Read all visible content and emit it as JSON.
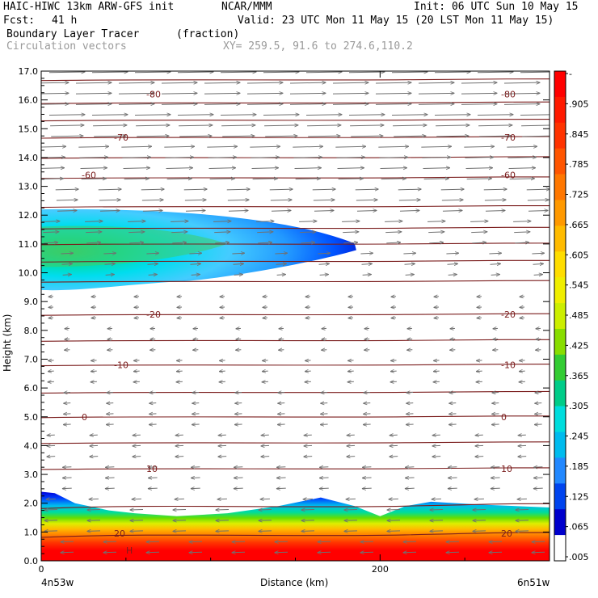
{
  "header": {
    "model_title": "HAIC-HIWC 13km ARW-GFS init",
    "org": "NCAR/MMM",
    "init_time": "Init: 06 UTC Sun 10 May 15",
    "fcst_label": "Fcst:",
    "fcst_value": "41 h",
    "valid_time": "Valid: 23 UTC Mon 11 May 15 (20 LST Mon 11 May 15)",
    "field_name": "Boundary Layer Tracer",
    "field_units": "(fraction)",
    "vector_name": "Circulation vectors",
    "xy_range": "XY= 259.5, 91.6 to 274.6,110.2"
  },
  "chart_data": {
    "type": "heatmap",
    "ylabel": "Height (km)",
    "xlabel": "Distance (km)",
    "ylim": [
      0,
      17
    ],
    "xlim": [
      0,
      300
    ],
    "yticks": [
      "0.0",
      "1.0",
      "2.0",
      "3.0",
      "4.0",
      "5.0",
      "6.0",
      "7.0",
      "8.0",
      "9.0",
      "10.0",
      "11.0",
      "12.0",
      "13.0",
      "14.0",
      "15.0",
      "16.0",
      "17.0"
    ],
    "xticks": [
      {
        "x": 0,
        "label": "0"
      },
      {
        "x": 200,
        "label": "200"
      }
    ],
    "x_endpoints": {
      "left": "4n53w",
      "right": "6n51w"
    },
    "colorbar": {
      "labels": [
        "-",
        ".905",
        ".845",
        ".785",
        ".725",
        ".665",
        ".605",
        ".545",
        ".485",
        ".425",
        ".365",
        ".305",
        ".245",
        ".185",
        ".125",
        ".065",
        ".005"
      ],
      "colors": [
        "#ff0000",
        "#ff1a00",
        "#ff3300",
        "#ff5500",
        "#ff7700",
        "#ff9900",
        "#ffbb00",
        "#ffdd00",
        "#f0ee00",
        "#ccee00",
        "#88dd00",
        "#33cc33",
        "#00cc88",
        "#00dddd",
        "#00bbee",
        "#2288ff",
        "#0044ee",
        "#0000cc",
        "#ffffff"
      ]
    },
    "boundary_layer_top_km": [
      {
        "x": 0,
        "y": 2.4
      },
      {
        "x": 8,
        "y": 2.35
      },
      {
        "x": 20,
        "y": 2.0
      },
      {
        "x": 40,
        "y": 1.75
      },
      {
        "x": 55,
        "y": 1.65
      },
      {
        "x": 80,
        "y": 1.55
      },
      {
        "x": 110,
        "y": 1.65
      },
      {
        "x": 140,
        "y": 1.9
      },
      {
        "x": 165,
        "y": 2.2
      },
      {
        "x": 185,
        "y": 1.9
      },
      {
        "x": 200,
        "y": 1.55
      },
      {
        "x": 215,
        "y": 1.9
      },
      {
        "x": 230,
        "y": 2.05
      },
      {
        "x": 260,
        "y": 1.95
      },
      {
        "x": 300,
        "y": 1.85
      }
    ],
    "upper_plume": {
      "x_start": 0,
      "x_end": 185,
      "y_base_km": 9.4,
      "y_top_km": 12.2,
      "y_core_km": 10.9,
      "core_value": 0.45
    },
    "temperature_contours": [
      {
        "label": "-80",
        "y_km": 16.2
      },
      {
        "label": "-70",
        "y_km": 14.7
      },
      {
        "label": "-60",
        "y_km": 13.4
      },
      {
        "label": "-20",
        "y_km": 8.55
      },
      {
        "label": "-10",
        "y_km": 6.8
      },
      {
        "label": "0",
        "y_km": 5.0
      },
      {
        "label": "10",
        "y_km": 3.2
      },
      {
        "label": "20",
        "y_km": 0.95
      }
    ],
    "temperature_contour_heights_km": [
      0.9,
      1.9,
      3.2,
      4.1,
      5.0,
      5.85,
      6.8,
      7.65,
      8.55,
      9.7,
      10.4,
      11.0,
      11.55,
      12.3,
      13.3,
      14.0,
      14.7,
      15.3,
      15.9,
      16.7
    ],
    "vectors": {
      "upper_direction": "eastward",
      "upper_layer_km": [
        9.8,
        17
      ],
      "lower_direction": "westward",
      "lower_layer_km": [
        0,
        9.2
      ]
    },
    "marker": "H"
  }
}
